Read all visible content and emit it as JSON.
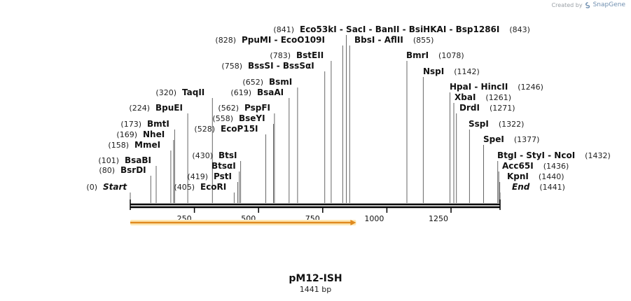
{
  "credit": {
    "prefix": "Created by",
    "brand": "SnapGene",
    "logo_icon": "snapgene-logo-icon"
  },
  "plasmid": {
    "name": "pM12-ISH",
    "length_label": "1441 bp",
    "length": 1441
  },
  "ruler": {
    "ticks": [
      250,
      500,
      750,
      1000,
      1250
    ]
  },
  "feature": {
    "start": 0,
    "end": 880,
    "direction": "forward",
    "color": "#e08a1e"
  },
  "sites": [
    {
      "id": "start",
      "segments": [
        {
          "name": "Start"
        }
      ],
      "pos_left": "(0)",
      "pos": 0,
      "italic": true
    },
    {
      "id": "bsrdi",
      "segments": [
        {
          "name": "BsrDI"
        }
      ],
      "pos_left": "(80)",
      "pos": 80
    },
    {
      "id": "bsabi",
      "segments": [
        {
          "name": "BsaBI"
        }
      ],
      "pos_left": "(101)",
      "pos": 101
    },
    {
      "id": "mmei",
      "segments": [
        {
          "name": "MmeI"
        }
      ],
      "pos_left": "(158)",
      "pos": 158
    },
    {
      "id": "nhei",
      "segments": [
        {
          "name": "NheI"
        }
      ],
      "pos_left": "(169)",
      "pos": 169
    },
    {
      "id": "bmti",
      "segments": [
        {
          "name": "BmtI"
        }
      ],
      "pos_left": "(173)",
      "pos": 173
    },
    {
      "id": "bpuei",
      "segments": [
        {
          "name": "BpuEI"
        }
      ],
      "pos_left": "(224)",
      "pos": 224
    },
    {
      "id": "taqii",
      "segments": [
        {
          "name": "TaqII"
        }
      ],
      "pos_left": "(320)",
      "pos": 320
    },
    {
      "id": "ecori",
      "segments": [
        {
          "name": "EcoRI"
        }
      ],
      "pos_left": "(405)",
      "pos": 405
    },
    {
      "id": "psti",
      "segments": [
        {
          "name": "PstI"
        }
      ],
      "pos_left": "(419)",
      "pos": 419
    },
    {
      "id": "btsgi",
      "segments": [
        {
          "name": "BtsαI"
        }
      ],
      "pos": 425
    },
    {
      "id": "btsi",
      "segments": [
        {
          "name": "BtsI"
        }
      ],
      "pos_left": "(430)",
      "pos": 430
    },
    {
      "id": "ecop15i",
      "segments": [
        {
          "name": "EcoP15I"
        }
      ],
      "pos_left": "(528)",
      "pos": 528
    },
    {
      "id": "bseyi",
      "segments": [
        {
          "name": "BseYI"
        }
      ],
      "pos_left": "(558)",
      "pos": 558
    },
    {
      "id": "pspfi",
      "segments": [
        {
          "name": "PspFI"
        }
      ],
      "pos_left": "(562)",
      "pos": 562
    },
    {
      "id": "bsaai",
      "segments": [
        {
          "name": "BsaAI"
        }
      ],
      "pos_left": "(619)",
      "pos": 619
    },
    {
      "id": "bsmi",
      "segments": [
        {
          "name": "BsmI"
        }
      ],
      "pos_left": "(652)",
      "pos": 652
    },
    {
      "id": "bsssi",
      "segments": [
        {
          "name": "BssSI"
        },
        {
          "name": "BssSαI"
        }
      ],
      "pos_left": "(758)",
      "pos": 758
    },
    {
      "id": "bsteii",
      "segments": [
        {
          "name": "BstEII"
        }
      ],
      "pos_left": "(783)",
      "pos": 783
    },
    {
      "id": "ppumi",
      "segments": [
        {
          "name": "PpuMI"
        },
        {
          "name": "EcoO109I"
        }
      ],
      "pos_left": "(828)",
      "pos": 828
    },
    {
      "id": "eco53ki",
      "segments": [
        {
          "name": "Eco53kI"
        },
        {
          "name": "SacI"
        },
        {
          "name": "BanII"
        },
        {
          "name": "BsiHKAI"
        },
        {
          "name": "Bsp1286I"
        }
      ],
      "pos_left": "(841)",
      "pos_right": "(843)",
      "pos": 842
    },
    {
      "id": "bbsi",
      "segments": [
        {
          "name": "BbsI"
        },
        {
          "name": "AflII"
        }
      ],
      "pos_right": "(855)",
      "pos": 855
    },
    {
      "id": "bmri",
      "segments": [
        {
          "name": "BmrI"
        }
      ],
      "pos_right": "(1078)",
      "pos": 1078
    },
    {
      "id": "nspi",
      "segments": [
        {
          "name": "NspI"
        }
      ],
      "pos_right": "(1142)",
      "pos": 1142
    },
    {
      "id": "hpai",
      "segments": [
        {
          "name": "HpaI"
        },
        {
          "name": "HincII"
        }
      ],
      "pos_right": "(1246)",
      "pos": 1246
    },
    {
      "id": "xbai",
      "segments": [
        {
          "name": "XbaI"
        }
      ],
      "pos_right": "(1261)",
      "pos": 1261
    },
    {
      "id": "drdi",
      "segments": [
        {
          "name": "DrdI"
        }
      ],
      "pos_right": "(1271)",
      "pos": 1271
    },
    {
      "id": "sspi",
      "segments": [
        {
          "name": "SspI"
        }
      ],
      "pos_right": "(1322)",
      "pos": 1322
    },
    {
      "id": "spei",
      "segments": [
        {
          "name": "SpeI"
        }
      ],
      "pos_right": "(1377)",
      "pos": 1377
    },
    {
      "id": "btgi",
      "segments": [
        {
          "name": "BtgI"
        },
        {
          "name": "StyI"
        },
        {
          "name": "NcoI"
        }
      ],
      "pos_right": "(1432)",
      "pos": 1432
    },
    {
      "id": "acc65i",
      "segments": [
        {
          "name": "Acc65I"
        }
      ],
      "pos_right": "(1436)",
      "pos": 1436
    },
    {
      "id": "kpni",
      "segments": [
        {
          "name": "KpnI"
        }
      ],
      "pos_right": "(1440)",
      "pos": 1440
    },
    {
      "id": "end",
      "segments": [
        {
          "name": "End"
        }
      ],
      "pos_right": "(1441)",
      "pos": 1441,
      "italic": true
    }
  ]
}
